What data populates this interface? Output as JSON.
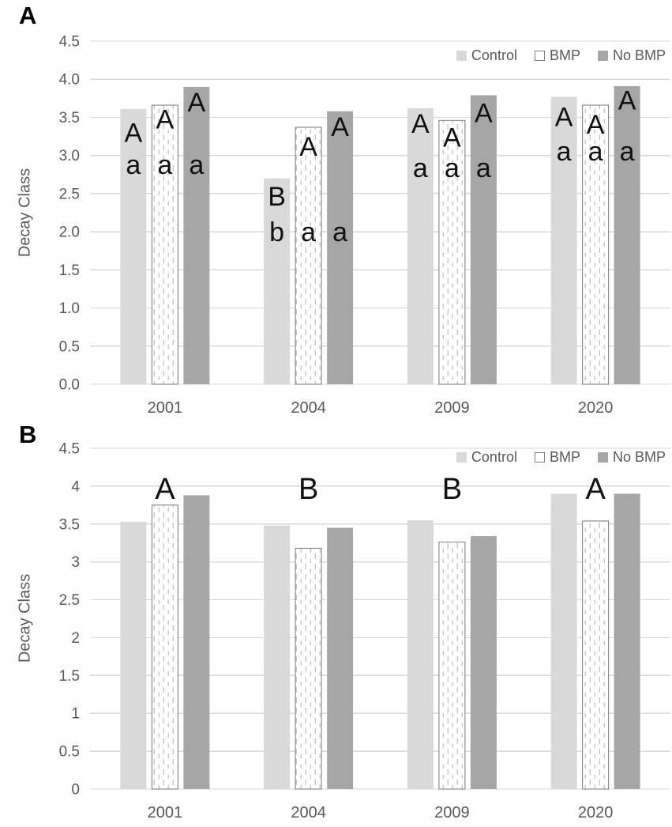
{
  "colors": {
    "control": "#d9d9d9",
    "no_bmp": "#a6a6a6",
    "bmp_fill": "#ffffff",
    "bmp_dash": "#c8c8c8",
    "bmp_border": "#7a7a7a",
    "gridline": "#d9d9d9",
    "axis_text": "#595959",
    "annotation": "#111111"
  },
  "chart_data": [
    {
      "type": "bar",
      "panel_label": "A",
      "ylabel": "Decay Class",
      "xlabel": "",
      "categories": [
        "2001",
        "2004",
        "2009",
        "2020"
      ],
      "series": [
        {
          "name": "Control",
          "values": [
            3.61,
            2.7,
            3.62,
            3.77
          ]
        },
        {
          "name": "BMP",
          "values": [
            3.66,
            3.37,
            3.46,
            3.66
          ]
        },
        {
          "name": "No BMP",
          "values": [
            3.9,
            3.58,
            3.79,
            3.91
          ]
        }
      ],
      "ylim": [
        0,
        4.5
      ],
      "ytick_step": 0.5,
      "ytick_labels": [
        "0.0",
        "0.5",
        "1.0",
        "1.5",
        "2.0",
        "2.5",
        "3.0",
        "3.5",
        "4.0",
        "4.5"
      ],
      "grid": true,
      "legend": {
        "position": "top-right"
      },
      "bar_annotations": [
        {
          "category": "2001",
          "series": "Control",
          "letters": [
            {
              "text": "A",
              "v": 3.3
            },
            {
              "text": "a",
              "v": 2.88
            }
          ]
        },
        {
          "category": "2001",
          "series": "BMP",
          "letters": [
            {
              "text": "A",
              "v": 3.48
            },
            {
              "text": "a",
              "v": 2.88
            }
          ]
        },
        {
          "category": "2001",
          "series": "No BMP",
          "letters": [
            {
              "text": "A",
              "v": 3.7
            },
            {
              "text": "a",
              "v": 2.88
            }
          ]
        },
        {
          "category": "2004",
          "series": "Control",
          "letters": [
            {
              "text": "B",
              "v": 2.47
            },
            {
              "text": "b",
              "v": 2.0
            }
          ]
        },
        {
          "category": "2004",
          "series": "BMP",
          "letters": [
            {
              "text": "A",
              "v": 3.12
            },
            {
              "text": "a",
              "v": 2.0
            }
          ]
        },
        {
          "category": "2004",
          "series": "No BMP",
          "letters": [
            {
              "text": "A",
              "v": 3.38
            },
            {
              "text": "a",
              "v": 2.0
            }
          ]
        },
        {
          "category": "2009",
          "series": "Control",
          "letters": [
            {
              "text": "A",
              "v": 3.42
            },
            {
              "text": "a",
              "v": 2.84
            }
          ]
        },
        {
          "category": "2009",
          "series": "BMP",
          "letters": [
            {
              "text": "A",
              "v": 3.24
            },
            {
              "text": "a",
              "v": 2.84
            }
          ]
        },
        {
          "category": "2009",
          "series": "No BMP",
          "letters": [
            {
              "text": "A",
              "v": 3.56
            },
            {
              "text": "a",
              "v": 2.84
            }
          ]
        },
        {
          "category": "2020",
          "series": "Control",
          "letters": [
            {
              "text": "A",
              "v": 3.51
            },
            {
              "text": "a",
              "v": 3.06
            }
          ]
        },
        {
          "category": "2020",
          "series": "BMP",
          "letters": [
            {
              "text": "A",
              "v": 3.41
            },
            {
              "text": "a",
              "v": 3.06
            }
          ]
        },
        {
          "category": "2020",
          "series": "No BMP",
          "letters": [
            {
              "text": "A",
              "v": 3.73
            },
            {
              "text": "a",
              "v": 3.06
            }
          ]
        }
      ]
    },
    {
      "type": "bar",
      "panel_label": "B",
      "ylabel": "Decay Class",
      "xlabel": "",
      "categories": [
        "2001",
        "2004",
        "2009",
        "2020"
      ],
      "series": [
        {
          "name": "Control",
          "values": [
            3.53,
            3.48,
            3.55,
            3.9
          ]
        },
        {
          "name": "BMP",
          "values": [
            3.75,
            3.18,
            3.26,
            3.54
          ]
        },
        {
          "name": "No BMP",
          "values": [
            3.88,
            3.45,
            3.34,
            3.9
          ]
        }
      ],
      "ylim": [
        0,
        4.5
      ],
      "ytick_step": 0.5,
      "ytick_labels": [
        "0",
        "0.5",
        "1",
        "1.5",
        "2",
        "2.5",
        "3",
        "3.5",
        "4",
        "4.5"
      ],
      "grid": true,
      "legend": {
        "position": "top-right"
      },
      "group_annotations": [
        {
          "category": "2001",
          "text": "A",
          "v": 3.97,
          "over_series": "BMP"
        },
        {
          "category": "2004",
          "text": "B",
          "v": 3.97,
          "over_series": "BMP"
        },
        {
          "category": "2009",
          "text": "B",
          "v": 3.97,
          "over_series": "BMP"
        },
        {
          "category": "2020",
          "text": "A",
          "v": 3.97,
          "over_series": "BMP"
        }
      ]
    }
  ]
}
